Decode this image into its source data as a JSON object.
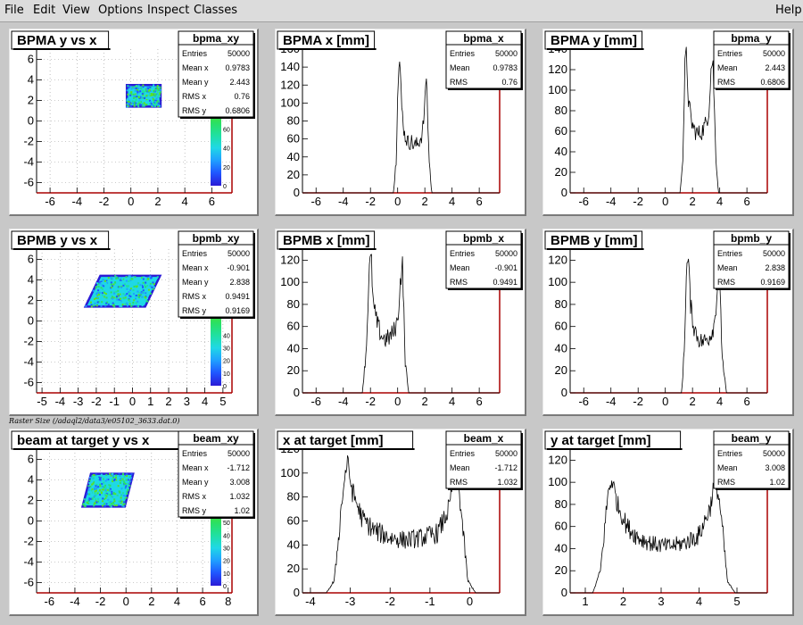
{
  "menu": {
    "file": "File",
    "edit": "Edit",
    "view": "View",
    "options": "Options",
    "inspect": "Inspect",
    "classes": "Classes",
    "help": "Help"
  },
  "raster_caption": "Raster Size (/adaql2/data3/e05102_3633.dat.0)",
  "colors": {
    "axis": "#000000",
    "frame_right_bottom": "#aa0000",
    "pad_bg": "#ffffff",
    "hist_line": "#000000",
    "palette": [
      "#2b1bd6",
      "#1f56ff",
      "#1fa0ff",
      "#1fd8e6",
      "#1fe0a0",
      "#2be060",
      "#5ee01f"
    ]
  },
  "chart_data": [
    {
      "id": "bpma_xy",
      "type": "heatmap",
      "title": "BPMA y vs x",
      "stats": {
        "name": "bpma_xy",
        "rows": [
          [
            "Entries",
            "50000"
          ],
          [
            "Mean x",
            "0.9783"
          ],
          [
            "Mean y",
            "2.443"
          ],
          [
            "RMS x",
            "0.76"
          ],
          [
            "RMS y",
            "0.6806"
          ]
        ]
      },
      "xlim": [
        -7,
        7.5
      ],
      "ylim": [
        -7,
        7
      ],
      "xticks": [
        "-6",
        "-4",
        "-2",
        "0",
        "2",
        "4",
        "6"
      ],
      "xtick_values": [
        -6,
        -4,
        -2,
        0,
        2,
        4,
        6
      ],
      "yticks": [
        "-6",
        "-4",
        "-2",
        "0",
        "2",
        "4",
        "6"
      ],
      "ytick_values": [
        -6,
        -4,
        -2,
        0,
        2,
        4,
        6
      ],
      "region": {
        "x0": -0.3,
        "x1": 2.2,
        "y0": 1.4,
        "y1": 3.5,
        "skew": 0
      },
      "palette_ticks": [
        "0",
        "20",
        "40",
        "60"
      ],
      "palette_tick_values": [
        0,
        20,
        40,
        60
      ],
      "palette_range": [
        0,
        80
      ]
    },
    {
      "id": "bpma_x",
      "type": "line",
      "title": "BPMA x [mm]",
      "stats": {
        "name": "bpma_x",
        "rows": [
          [
            "Entries",
            "50000"
          ],
          [
            "Mean",
            "0.9783"
          ],
          [
            "RMS",
            "0.76"
          ]
        ]
      },
      "xlim": [
        -7,
        7.5
      ],
      "ylim": [
        0,
        160
      ],
      "xticks": [
        "-6",
        "-4",
        "-2",
        "0",
        "2",
        "4",
        "6"
      ],
      "xtick_values": [
        -6,
        -4,
        -2,
        0,
        2,
        4,
        6
      ],
      "yticks": [
        "0",
        "20",
        "40",
        "60",
        "80",
        "100",
        "120",
        "140",
        "160"
      ],
      "ytick_values": [
        0,
        20,
        40,
        60,
        80,
        100,
        120,
        140,
        160
      ],
      "x": [
        -0.3,
        -0.1,
        0.0,
        0.15,
        0.3,
        0.5,
        0.8,
        1.0,
        1.2,
        1.5,
        1.8,
        2.0,
        2.1,
        2.3,
        2.5
      ],
      "y": [
        0,
        40,
        120,
        148,
        95,
        65,
        55,
        58,
        52,
        55,
        65,
        95,
        138,
        40,
        0
      ]
    },
    {
      "id": "bpma_y",
      "type": "line",
      "title": "BPMA y [mm]",
      "stats": {
        "name": "bpma_y",
        "rows": [
          [
            "Entries",
            "50000"
          ],
          [
            "Mean",
            "2.443"
          ],
          [
            "RMS",
            "0.6806"
          ]
        ]
      },
      "xlim": [
        -7,
        7.5
      ],
      "ylim": [
        0,
        140
      ],
      "xticks": [
        "-6",
        "-4",
        "-2",
        "0",
        "2",
        "4",
        "6"
      ],
      "xtick_values": [
        -6,
        -4,
        -2,
        0,
        2,
        4,
        6
      ],
      "yticks": [
        "0",
        "20",
        "40",
        "60",
        "80",
        "100",
        "120",
        "140"
      ],
      "ytick_values": [
        0,
        20,
        40,
        60,
        80,
        100,
        120,
        140
      ],
      "x": [
        1.1,
        1.3,
        1.45,
        1.55,
        1.7,
        1.9,
        2.1,
        2.4,
        2.7,
        3.0,
        3.2,
        3.35,
        3.5,
        3.7,
        3.9
      ],
      "y": [
        0,
        40,
        128,
        135,
        90,
        70,
        62,
        57,
        60,
        68,
        80,
        120,
        130,
        40,
        0
      ]
    },
    {
      "id": "bpmb_xy",
      "type": "heatmap",
      "title": "BPMB y vs x",
      "stats": {
        "name": "bpmb_xy",
        "rows": [
          [
            "Entries",
            "50000"
          ],
          [
            "Mean x",
            "-0.901"
          ],
          [
            "Mean y",
            "2.838"
          ],
          [
            "RMS x",
            "0.9491"
          ],
          [
            "RMS y",
            "0.9169"
          ]
        ]
      },
      "xlim": [
        -5.3,
        5.5
      ],
      "ylim": [
        -7,
        7
      ],
      "xticks": [
        "-5",
        "-4",
        "-3",
        "-2",
        "-1",
        "0",
        "1",
        "2",
        "3",
        "4",
        "5"
      ],
      "xtick_values": [
        -5,
        -4,
        -3,
        -2,
        -1,
        0,
        1,
        2,
        3,
        4,
        5
      ],
      "yticks": [
        "-6",
        "-4",
        "-2",
        "0",
        "2",
        "4",
        "6"
      ],
      "ytick_values": [
        -6,
        -4,
        -2,
        0,
        2,
        4,
        6
      ],
      "region": {
        "x0": -2.6,
        "x1": 0.7,
        "y0": 1.4,
        "y1": 4.4,
        "skew": 0.25
      },
      "palette_ticks": [
        "0",
        "10",
        "20",
        "30",
        "40"
      ],
      "palette_tick_values": [
        0,
        10,
        20,
        30,
        40
      ],
      "palette_range": [
        0,
        60
      ]
    },
    {
      "id": "bpmb_x",
      "type": "line",
      "title": "BPMB x [mm]",
      "stats": {
        "name": "bpmb_x",
        "rows": [
          [
            "Entries",
            "50000"
          ],
          [
            "Mean",
            "-0.901"
          ],
          [
            "RMS",
            "0.9491"
          ]
        ]
      },
      "xlim": [
        -7,
        7.5
      ],
      "ylim": [
        0,
        130
      ],
      "xticks": [
        "-6",
        "-4",
        "-2",
        "0",
        "2",
        "4",
        "6"
      ],
      "xtick_values": [
        -6,
        -4,
        -2,
        0,
        2,
        4,
        6
      ],
      "yticks": [
        "0",
        "20",
        "40",
        "60",
        "80",
        "100",
        "120"
      ],
      "ytick_values": [
        0,
        20,
        40,
        60,
        80,
        100,
        120
      ],
      "x": [
        -2.6,
        -2.3,
        -2.1,
        -1.95,
        -1.8,
        -1.5,
        -1.2,
        -0.9,
        -0.6,
        -0.3,
        0.0,
        0.2,
        0.35,
        0.55,
        0.8
      ],
      "y": [
        0,
        40,
        110,
        125,
        80,
        62,
        52,
        48,
        50,
        55,
        65,
        100,
        118,
        30,
        0
      ]
    },
    {
      "id": "bpmb_y",
      "type": "line",
      "title": "BPMB y [mm]",
      "stats": {
        "name": "bpmb_y",
        "rows": [
          [
            "Entries",
            "50000"
          ],
          [
            "Mean",
            "2.838"
          ],
          [
            "RMS",
            "0.9169"
          ]
        ]
      },
      "xlim": [
        -7,
        7.5
      ],
      "ylim": [
        0,
        130
      ],
      "xticks": [
        "-6",
        "-4",
        "-2",
        "0",
        "2",
        "4",
        "6"
      ],
      "xtick_values": [
        -6,
        -4,
        -2,
        0,
        2,
        4,
        6
      ],
      "yticks": [
        "0",
        "20",
        "40",
        "60",
        "80",
        "100",
        "120"
      ],
      "ytick_values": [
        0,
        20,
        40,
        60,
        80,
        100,
        120
      ],
      "x": [
        1.2,
        1.4,
        1.55,
        1.7,
        1.85,
        2.1,
        2.4,
        2.7,
        3.0,
        3.3,
        3.6,
        3.8,
        3.95,
        4.2,
        4.5
      ],
      "y": [
        0,
        40,
        112,
        120,
        80,
        60,
        50,
        46,
        48,
        52,
        62,
        90,
        110,
        30,
        0
      ]
    },
    {
      "id": "beam_xy",
      "type": "heatmap",
      "title": "beam at target y vs x",
      "stats": {
        "name": "beam_xy",
        "rows": [
          [
            "Entries",
            "50000"
          ],
          [
            "Mean x",
            "-1.712"
          ],
          [
            "Mean y",
            "3.008"
          ],
          [
            "RMS x",
            "1.032"
          ],
          [
            "RMS y",
            "1.02"
          ]
        ]
      },
      "xlim": [
        -7,
        8.3
      ],
      "ylim": [
        -7,
        7
      ],
      "xticks": [
        "-6",
        "-4",
        "-2",
        "0",
        "2",
        "4",
        "6",
        "8"
      ],
      "xtick_values": [
        -6,
        -4,
        -2,
        0,
        2,
        4,
        6,
        8
      ],
      "yticks": [
        "-6",
        "-4",
        "-2",
        "0",
        "2",
        "4",
        "6"
      ],
      "ytick_values": [
        -6,
        -4,
        -2,
        0,
        2,
        4,
        6
      ],
      "region": {
        "x0": -3.4,
        "x1": -0.1,
        "y0": 1.4,
        "y1": 4.6,
        "skew": 0.2
      },
      "palette_ticks": [
        "0",
        "10",
        "20",
        "30",
        "40",
        "50"
      ],
      "palette_tick_values": [
        0,
        10,
        20,
        30,
        40,
        50
      ],
      "palette_range": [
        0,
        60
      ]
    },
    {
      "id": "beam_x",
      "type": "line",
      "title": "x at target [mm]",
      "stats": {
        "name": "beam_x",
        "rows": [
          [
            "Entries",
            "50000"
          ],
          [
            "Mean",
            "-1.712"
          ],
          [
            "RMS",
            "1.032"
          ]
        ]
      },
      "xlim": [
        -4.2,
        0.75
      ],
      "ylim": [
        0,
        120
      ],
      "xticks": [
        "-4",
        "-3",
        "-2",
        "-1",
        "0"
      ],
      "xtick_values": [
        -4,
        -3,
        -2,
        -1,
        0
      ],
      "yticks": [
        "0",
        "20",
        "40",
        "60",
        "80",
        "100",
        "120"
      ],
      "ytick_values": [
        0,
        20,
        40,
        60,
        80,
        100,
        120
      ],
      "x": [
        -3.6,
        -3.4,
        -3.2,
        -3.08,
        -2.95,
        -2.7,
        -2.4,
        -2.0,
        -1.6,
        -1.2,
        -0.8,
        -0.5,
        -0.38,
        -0.25,
        -0.05,
        0.15
      ],
      "y": [
        0,
        10,
        80,
        110,
        85,
        62,
        52,
        46,
        44,
        46,
        50,
        72,
        112,
        80,
        10,
        0
      ]
    },
    {
      "id": "beam_y",
      "type": "line",
      "title": "y at target [mm]",
      "stats": {
        "name": "beam_y",
        "rows": [
          [
            "Entries",
            "50000"
          ],
          [
            "Mean",
            "3.008"
          ],
          [
            "RMS",
            "1.02"
          ]
        ]
      },
      "xlim": [
        0.6,
        5.8
      ],
      "ylim": [
        0,
        130
      ],
      "xticks": [
        "1",
        "2",
        "3",
        "4",
        "5"
      ],
      "xtick_values": [
        1,
        2,
        3,
        4,
        5
      ],
      "yticks": [
        "0",
        "20",
        "40",
        "60",
        "80",
        "100",
        "120"
      ],
      "ytick_values": [
        0,
        20,
        40,
        60,
        80,
        100,
        120
      ],
      "x": [
        1.2,
        1.4,
        1.6,
        1.7,
        1.85,
        2.1,
        2.4,
        2.8,
        3.2,
        3.6,
        4.0,
        4.3,
        4.42,
        4.55,
        4.75,
        4.95
      ],
      "y": [
        0,
        20,
        90,
        103,
        80,
        60,
        50,
        44,
        42,
        45,
        52,
        78,
        105,
        80,
        10,
        0
      ]
    }
  ]
}
